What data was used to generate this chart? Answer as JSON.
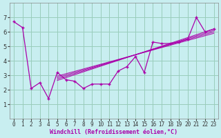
{
  "xlabel": "Windchill (Refroidissement éolien,°C)",
  "bg_color": "#c8eef0",
  "line_color": "#aa00aa",
  "grid_color": "#99ccbb",
  "x_scatter": [
    0,
    1,
    2,
    3,
    4,
    5,
    6,
    7,
    8,
    9,
    10,
    11,
    12,
    13,
    14,
    15,
    16,
    17,
    18,
    19,
    20,
    21,
    22,
    23
  ],
  "y_scatter": [
    6.7,
    6.3,
    2.1,
    2.5,
    1.4,
    3.2,
    2.7,
    2.6,
    2.1,
    2.4,
    2.4,
    2.4,
    3.3,
    3.6,
    4.3,
    3.2,
    5.3,
    5.2,
    5.2,
    5.3,
    5.5,
    7.0,
    6.0,
    6.2
  ],
  "reg_lines": [
    {
      "x": [
        5,
        23
      ],
      "y": [
        2.65,
        6.2
      ]
    },
    {
      "x": [
        5,
        23
      ],
      "y": [
        2.75,
        6.1
      ]
    },
    {
      "x": [
        5,
        23
      ],
      "y": [
        2.85,
        6.0
      ]
    },
    {
      "x": [
        5,
        23
      ],
      "y": [
        2.95,
        5.9
      ]
    }
  ],
  "ylim": [
    0,
    8
  ],
  "xlim": [
    -0.5,
    23.5
  ],
  "yticks": [
    1,
    2,
    3,
    4,
    5,
    6,
    7
  ],
  "xticks": [
    0,
    1,
    2,
    3,
    4,
    5,
    6,
    7,
    8,
    9,
    10,
    11,
    12,
    13,
    14,
    15,
    16,
    17,
    18,
    19,
    20,
    21,
    22,
    23
  ],
  "tick_fontsize": 5.5,
  "xlabel_fontsize": 6.0
}
